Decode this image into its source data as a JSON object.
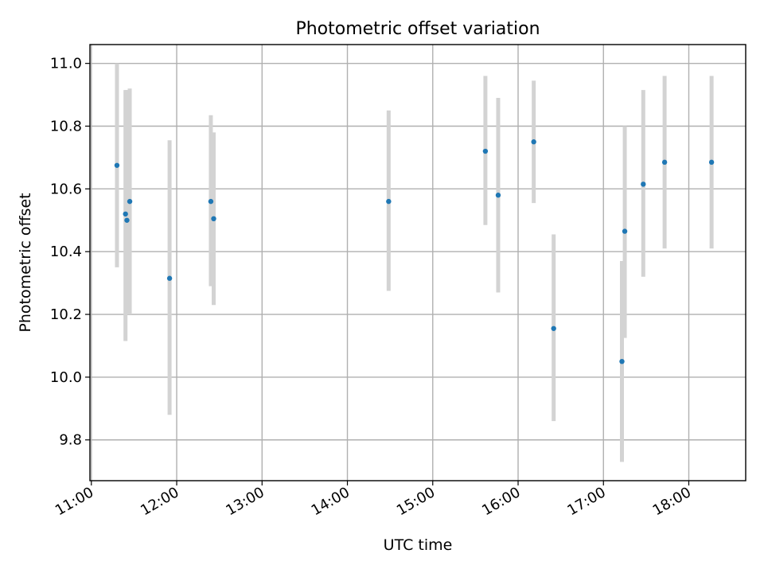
{
  "chart_data": {
    "type": "scatter",
    "title": "Photometric offset variation",
    "xlabel": "UTC time",
    "ylabel": "Photometric offset",
    "x_unit": "UTC hour of day",
    "xlim": [
      "10:59",
      "18:40"
    ],
    "ylim": [
      9.67,
      11.06
    ],
    "x_ticks": [
      "11:00",
      "12:00",
      "13:00",
      "14:00",
      "15:00",
      "16:00",
      "17:00",
      "18:00"
    ],
    "y_ticks": [
      "9.8",
      "10.0",
      "10.2",
      "10.4",
      "10.6",
      "10.8",
      "11.0"
    ],
    "grid": true,
    "marker_color": "#1f77b4",
    "errorbar_color": "#d3d3d3",
    "points": [
      {
        "time": "11:18",
        "y": 10.675,
        "ylo": 10.35,
        "yhi": 11.0
      },
      {
        "time": "11:24",
        "y": 10.52,
        "ylo": 10.115,
        "yhi": 10.915
      },
      {
        "time": "11:25",
        "y": 10.5,
        "ylo": 10.2,
        "yhi": 10.915
      },
      {
        "time": "11:27",
        "y": 10.56,
        "ylo": 10.2,
        "yhi": 10.92
      },
      {
        "time": "11:55",
        "y": 10.315,
        "ylo": 9.88,
        "yhi": 10.755
      },
      {
        "time": "12:24",
        "y": 10.56,
        "ylo": 10.29,
        "yhi": 10.835
      },
      {
        "time": "12:26",
        "y": 10.505,
        "ylo": 10.23,
        "yhi": 10.78
      },
      {
        "time": "14:29",
        "y": 10.56,
        "ylo": 10.275,
        "yhi": 10.85
      },
      {
        "time": "15:37",
        "y": 10.72,
        "ylo": 10.485,
        "yhi": 10.96
      },
      {
        "time": "15:46",
        "y": 10.58,
        "ylo": 10.27,
        "yhi": 10.89
      },
      {
        "time": "16:11",
        "y": 10.75,
        "ylo": 10.555,
        "yhi": 10.945
      },
      {
        "time": "16:25",
        "y": 10.155,
        "ylo": 9.86,
        "yhi": 10.455
      },
      {
        "time": "17:13",
        "y": 10.05,
        "ylo": 9.73,
        "yhi": 10.37
      },
      {
        "time": "17:15",
        "y": 10.465,
        "ylo": 10.125,
        "yhi": 10.8
      },
      {
        "time": "17:28",
        "y": 10.615,
        "ylo": 10.32,
        "yhi": 10.915
      },
      {
        "time": "17:43",
        "y": 10.685,
        "ylo": 10.41,
        "yhi": 10.96
      },
      {
        "time": "18:16",
        "y": 10.685,
        "ylo": 10.41,
        "yhi": 10.96
      }
    ]
  }
}
